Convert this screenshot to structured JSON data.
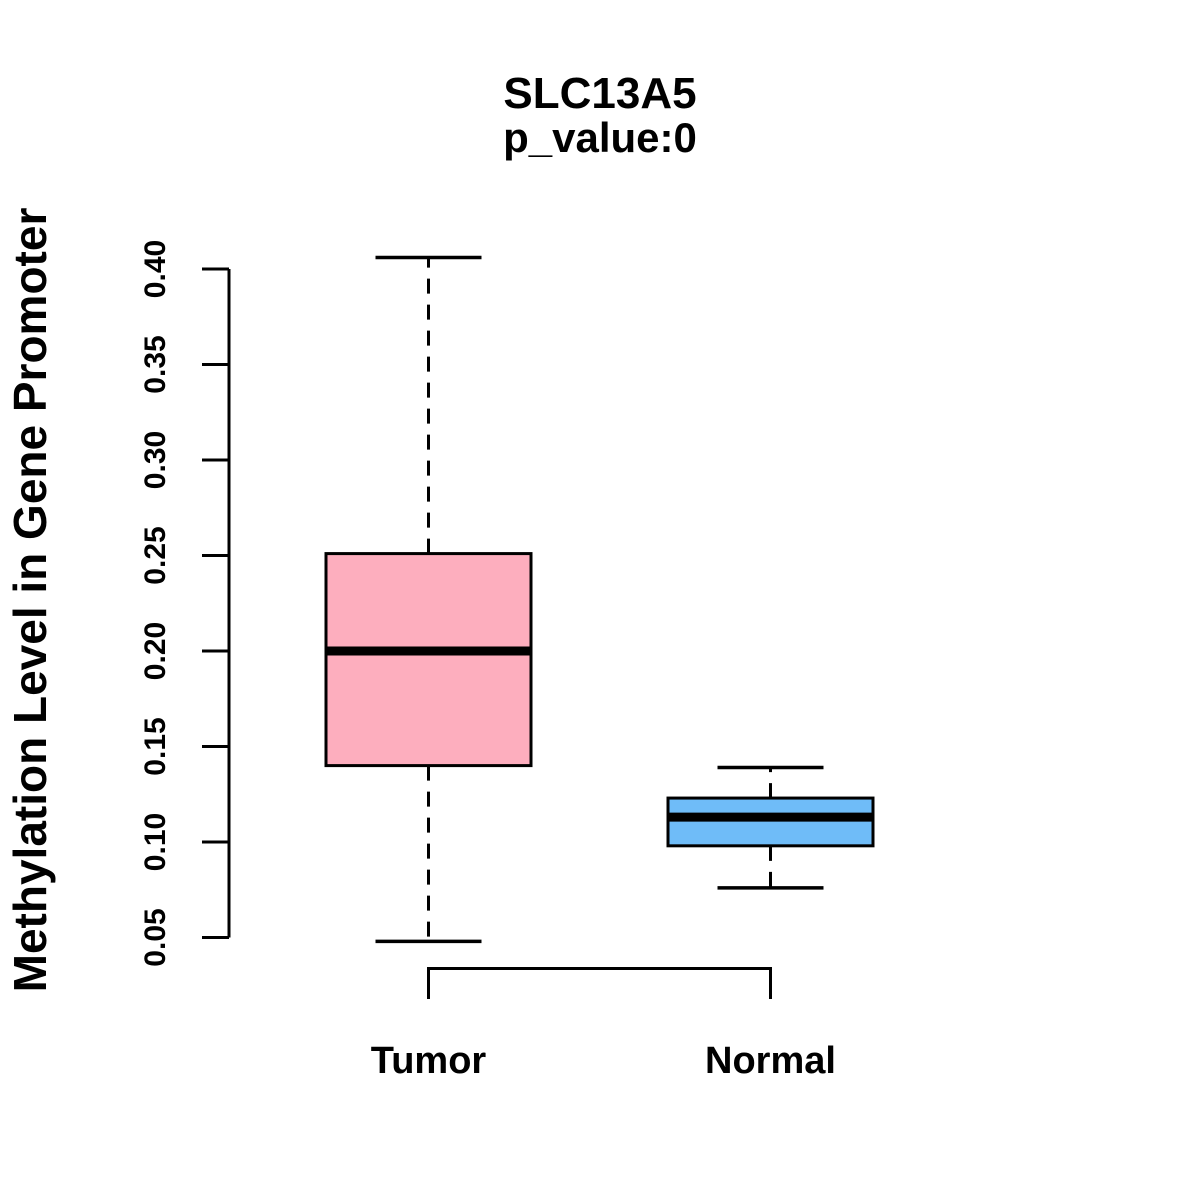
{
  "chart_data": {
    "type": "boxplot",
    "title": "SLC13A5",
    "subtitle": "p_value:0",
    "ylabel": "Methylation Level in Gene Promoter",
    "yticks": [
      "0.05",
      "0.10",
      "0.15",
      "0.20",
      "0.25",
      "0.30",
      "0.35",
      "0.40"
    ],
    "ylim": [
      0.048,
      0.406
    ],
    "grid": false,
    "whisker_style": "dashed",
    "groups": [
      {
        "label": "Tumor",
        "fill": "#FDAEBE",
        "whisker_low": 0.048,
        "q1": 0.14,
        "median": 0.2,
        "q3": 0.251,
        "whisker_high": 0.406
      },
      {
        "label": "Normal",
        "fill": "#6FBCF8",
        "whisker_low": 0.076,
        "q1": 0.098,
        "median": 0.113,
        "q3": 0.123,
        "whisker_high": 0.139
      }
    ],
    "bracket": {
      "connects": [
        "Tumor",
        "Normal"
      ]
    },
    "colors": {
      "stroke": "#000000",
      "background": "#FFFFFF"
    }
  }
}
